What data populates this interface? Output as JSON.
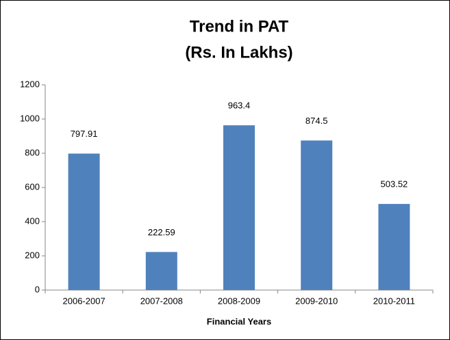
{
  "chart_data": {
    "type": "bar",
    "title": "Trend in PAT",
    "subtitle": "(Rs. In Lakhs)",
    "x_label": "Financial Years",
    "categories": [
      "2006-2007",
      "2007-2008",
      "2008-2009",
      "2009-2010",
      "2010-2011"
    ],
    "values": [
      797.91,
      222.59,
      963.4,
      874.5,
      503.52
    ],
    "color": "#4f81bd",
    "ylim": [
      0,
      1200
    ],
    "yticks": [
      0,
      200,
      400,
      600,
      800,
      1000,
      1200
    ],
    "grid": false
  }
}
